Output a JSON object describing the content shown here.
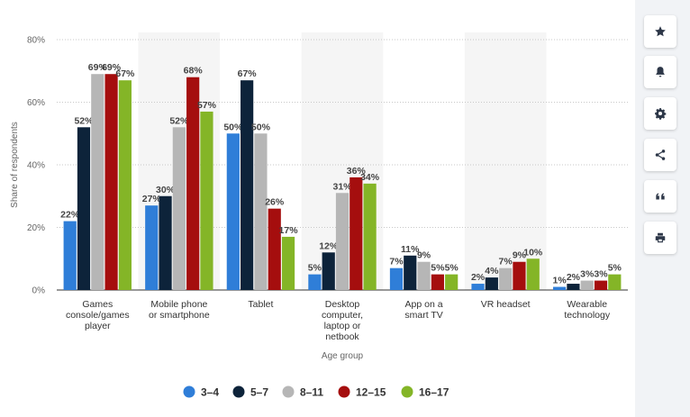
{
  "chart_data": {
    "type": "bar",
    "categories": [
      [
        "Games",
        "console/games",
        "player"
      ],
      [
        "Mobile phone",
        "or smartphone"
      ],
      [
        "Tablet"
      ],
      [
        "Desktop",
        "computer,",
        "laptop or",
        "netbook"
      ],
      [
        "App on a",
        "smart TV"
      ],
      [
        "VR headset"
      ],
      [
        "Wearable",
        "technology"
      ]
    ],
    "series": [
      {
        "name": "3-4",
        "color": "#2f7ed8",
        "values": [
          22,
          27,
          50,
          5,
          7,
          2,
          1
        ]
      },
      {
        "name": "5-7",
        "color": "#0d233a",
        "values": [
          52,
          30,
          67,
          12,
          11,
          4,
          2
        ]
      },
      {
        "name": "8-11",
        "color": "#b6b6b6",
        "values": [
          69,
          52,
          50,
          31,
          9,
          7,
          3
        ]
      },
      {
        "name": "12-15",
        "color": "#a50e0e",
        "values": [
          69,
          68,
          26,
          36,
          5,
          9,
          3
        ]
      },
      {
        "name": "16-17",
        "color": "#84b527",
        "values": [
          67,
          57,
          17,
          34,
          5,
          10,
          5
        ]
      }
    ],
    "data_labels": [
      [
        "22%",
        "27%",
        "50%",
        "5%",
        "7%",
        "2%",
        "1%"
      ],
      [
        "52%",
        "30%",
        "67%",
        "12%",
        "11%",
        "4%",
        "2%"
      ],
      [
        "69%",
        "52%",
        "50%",
        "31%",
        "9%",
        "7%",
        "3%"
      ],
      [
        "69%",
        "68%",
        "26%",
        "36%",
        "5%",
        "9%",
        "3%"
      ],
      [
        "67%",
        "57%",
        "17%",
        "34%",
        "5%",
        "10%",
        "5%"
      ]
    ],
    "yticks": [
      0,
      20,
      40,
      60,
      80
    ],
    "ytick_labels": [
      "0%",
      "20%",
      "40%",
      "60%",
      "80%"
    ],
    "ylim": [
      0,
      80
    ],
    "xlabel": "Age group",
    "ylabel": "Share of respondents",
    "grid": true,
    "legend_position": "bottom",
    "alternate_band_color": "#f5f5f5"
  },
  "sidebar": {
    "buttons": [
      {
        "name": "favorite-button",
        "icon": "star-icon"
      },
      {
        "name": "notification-button",
        "icon": "bell-icon"
      },
      {
        "name": "settings-button",
        "icon": "gear-icon"
      },
      {
        "name": "share-button",
        "icon": "share-icon"
      },
      {
        "name": "cite-button",
        "icon": "quote-icon"
      },
      {
        "name": "print-button",
        "icon": "print-icon"
      }
    ],
    "icon_color": "#2d3748"
  }
}
